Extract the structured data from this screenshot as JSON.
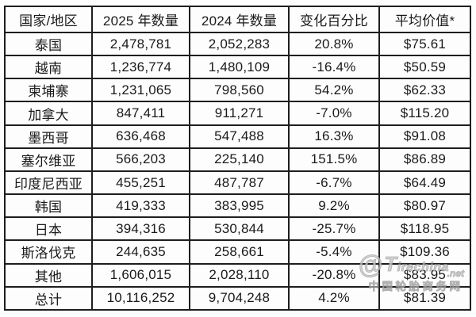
{
  "chart_data": {
    "type": "table",
    "title": "",
    "columns": [
      "国家/地区",
      "2025 年数量",
      "2024 年数量",
      "变化百分比",
      "平均价值*"
    ],
    "rows": [
      [
        "泰国",
        "2,478,781",
        "2,052,283",
        "20.8%",
        "$75.61"
      ],
      [
        "越南",
        "1,236,774",
        "1,480,109",
        "-16.4%",
        "$50.59"
      ],
      [
        "柬埔寨",
        "1,231,065",
        "798,560",
        "54.2%",
        "$62.33"
      ],
      [
        "加拿大",
        "847,411",
        "911,271",
        "-7.0%",
        "$115.20"
      ],
      [
        "墨西哥",
        "636,468",
        "547,488",
        "16.3%",
        "$91.08"
      ],
      [
        "塞尔维亚",
        "566,203",
        "225,140",
        "151.5%",
        "$86.89"
      ],
      [
        "印度尼西亚",
        "455,251",
        "487,787",
        "-6.7%",
        "$64.49"
      ],
      [
        "韩国",
        "419,333",
        "383,995",
        "9.2%",
        "$80.97"
      ],
      [
        "日本",
        "394,316",
        "530,844",
        "-25.7%",
        "$118.95"
      ],
      [
        "斯洛伐克",
        "244,635",
        "258,661",
        "-5.4%",
        "$109.36"
      ],
      [
        "其他",
        "1,606,015",
        "2,028,110",
        "-20.8%",
        "$83.95"
      ],
      [
        "总计",
        "10,116,252",
        "9,704,248",
        "4.2%",
        "$81.39"
      ]
    ]
  },
  "watermark": {
    "emblem": "@",
    "brand": "Tirechina",
    "tld": ".net",
    "caption": "中国轮胎商务网"
  },
  "colors": {
    "border": "#1e1e1e",
    "text": "#1a1a1a",
    "watermark": "#c6c6c6",
    "background": "#fdfdfd"
  }
}
